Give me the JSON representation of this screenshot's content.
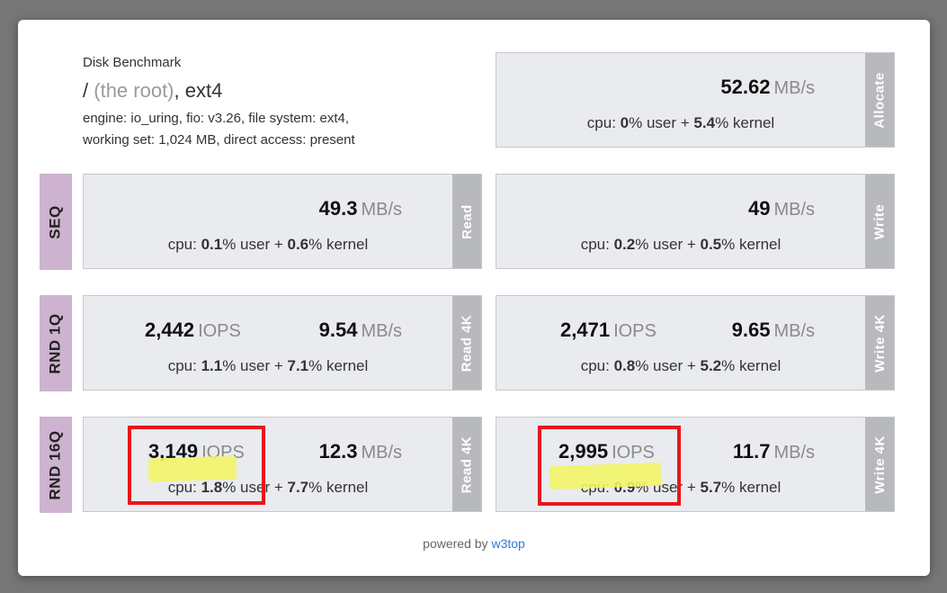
{
  "header": {
    "title": "Disk Benchmark",
    "path_slash": "/",
    "path_root": "(the root)",
    "path_fs": ", ext4",
    "line1": "engine: io_uring, fio: v3.26, file system: ext4,",
    "line2": "working set: 1,024 MB, direct access: present"
  },
  "allocate": {
    "tab": "Allocate",
    "speed": "52.62",
    "speed_unit": "MB/s",
    "cpu_user": "0",
    "cpu_kernel": "5.4"
  },
  "rows": {
    "seq": "SEQ",
    "rnd1q": "RND 1Q",
    "rnd16q": "RND 16Q"
  },
  "seq_read": {
    "tab": "Read",
    "speed": "49.3",
    "speed_unit": "MB/s",
    "cpu_user": "0.1",
    "cpu_kernel": "0.6"
  },
  "seq_write": {
    "tab": "Write",
    "speed": "49",
    "speed_unit": "MB/s",
    "cpu_user": "0.2",
    "cpu_kernel": "0.5"
  },
  "rnd1q_read": {
    "tab": "Read 4K",
    "iops": "2,442",
    "iops_unit": "IOPS",
    "speed": "9.54",
    "speed_unit": "MB/s",
    "cpu_user": "1.1",
    "cpu_kernel": "7.1"
  },
  "rnd1q_write": {
    "tab": "Write 4K",
    "iops": "2,471",
    "iops_unit": "IOPS",
    "speed": "9.65",
    "speed_unit": "MB/s",
    "cpu_user": "0.8",
    "cpu_kernel": "5.2"
  },
  "rnd16q_read": {
    "tab": "Read 4K",
    "iops": "3,149",
    "iops_unit": "IOPS",
    "speed": "12.3",
    "speed_unit": "MB/s",
    "cpu_user": "1.8",
    "cpu_kernel": "7.7"
  },
  "rnd16q_write": {
    "tab": "Write 4K",
    "iops": "2,995",
    "iops_unit": "IOPS",
    "speed": "11.7",
    "speed_unit": "MB/s",
    "cpu_user": "0.9",
    "cpu_kernel": "5.7"
  },
  "cpu_text": {
    "prefix": "cpu: ",
    "user_suffix": "% user + ",
    "kernel_suffix": "% kernel"
  },
  "footer": {
    "text": "powered by ",
    "link": "w3top"
  },
  "colors": {
    "row_label": "#cdb3d0",
    "tab": "#b8b9bd",
    "box": "#e9ebef",
    "annotation_box": "#e8161c",
    "highlight": "#f2f565",
    "link": "#2a7ad8"
  }
}
